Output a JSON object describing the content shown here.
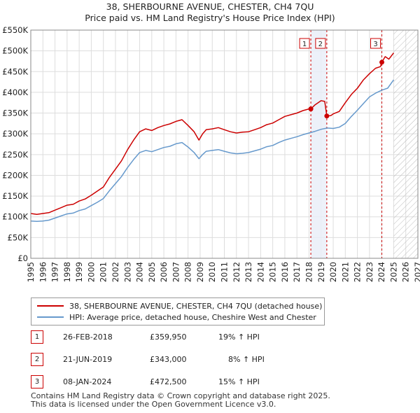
{
  "header": {
    "title": "38, SHERBOURNE AVENUE, CHESTER, CH4 7QU",
    "subtitle": "Price paid vs. HM Land Registry's House Price Index (HPI)"
  },
  "colors": {
    "price_line": "#cc0000",
    "hpi_line": "#6699cc",
    "grid": "#dddddd",
    "shade": "#e8eef8",
    "marker_line": "#cc0000"
  },
  "chart_data": {
    "type": "line",
    "title": "38, SHERBOURNE AVENUE, CHESTER, CH4 7QU",
    "subtitle": "Price paid vs. HM Land Registry's House Price Index (HPI)",
    "xlim": [
      1995,
      2027
    ],
    "ylim": [
      0,
      550000
    ],
    "x_ticks": [
      "1995",
      "1996",
      "1997",
      "1998",
      "1999",
      "2000",
      "2001",
      "2002",
      "2003",
      "2004",
      "2005",
      "2006",
      "2007",
      "2008",
      "2009",
      "2010",
      "2011",
      "2012",
      "2013",
      "2014",
      "2015",
      "2016",
      "2017",
      "2018",
      "2019",
      "2020",
      "2021",
      "2022",
      "2023",
      "2024",
      "2025",
      "2026",
      "2027"
    ],
    "y_ticks": [
      {
        "value": 0,
        "label": "£0"
      },
      {
        "value": 50000,
        "label": "£50K"
      },
      {
        "value": 100000,
        "label": "£100K"
      },
      {
        "value": 150000,
        "label": "£150K"
      },
      {
        "value": 200000,
        "label": "£200K"
      },
      {
        "value": 250000,
        "label": "£250K"
      },
      {
        "value": 300000,
        "label": "£300K"
      },
      {
        "value": 350000,
        "label": "£350K"
      },
      {
        "value": 400000,
        "label": "£400K"
      },
      {
        "value": 450000,
        "label": "£450K"
      },
      {
        "value": 500000,
        "label": "£500K"
      },
      {
        "value": 550000,
        "label": "£550K"
      }
    ],
    "shaded_periods": [
      [
        2018.15,
        2019.47
      ]
    ],
    "future_hatch_from": 2025.0,
    "series": [
      {
        "name": "38, SHERBOURNE AVENUE, CHESTER, CH4 7QU (detached house)",
        "x": [
          1995.0,
          1995.5,
          1996.0,
          1996.5,
          1997.0,
          1997.5,
          1998.0,
          1998.5,
          1999.0,
          1999.5,
          2000.0,
          2000.5,
          2001.0,
          2001.5,
          2002.0,
          2002.5,
          2003.0,
          2003.5,
          2004.0,
          2004.5,
          2005.0,
          2005.5,
          2006.0,
          2006.5,
          2007.0,
          2007.5,
          2008.0,
          2008.5,
          2008.9,
          2009.2,
          2009.5,
          2010.0,
          2010.5,
          2011.0,
          2011.5,
          2012.0,
          2012.5,
          2013.0,
          2013.5,
          2014.0,
          2014.5,
          2015.0,
          2015.5,
          2016.0,
          2016.5,
          2017.0,
          2017.5,
          2018.0,
          2018.15,
          2018.5,
          2019.0,
          2019.3,
          2019.47,
          2019.8,
          2020.0,
          2020.5,
          2021.0,
          2021.5,
          2022.0,
          2022.5,
          2023.0,
          2023.5,
          2023.9,
          2024.02,
          2024.3,
          2024.6,
          2025.0
        ],
        "y": [
          108000,
          106000,
          108000,
          110000,
          116000,
          122000,
          128000,
          130000,
          138000,
          143000,
          152000,
          162000,
          172000,
          195000,
          215000,
          235000,
          262000,
          285000,
          305000,
          312000,
          308000,
          315000,
          320000,
          324000,
          330000,
          334000,
          320000,
          305000,
          285000,
          300000,
          310000,
          312000,
          315000,
          310000,
          305000,
          302000,
          304000,
          305000,
          310000,
          315000,
          322000,
          326000,
          334000,
          342000,
          346000,
          350000,
          356000,
          360000,
          359950,
          370000,
          380000,
          378000,
          343000,
          344000,
          348000,
          354000,
          375000,
          395000,
          410000,
          430000,
          445000,
          458000,
          462000,
          472500,
          486000,
          480000,
          495000
        ]
      },
      {
        "name": "HPI: Average price, detached house, Cheshire West and Chester",
        "x": [
          1995.0,
          1995.5,
          1996.0,
          1996.5,
          1997.0,
          1997.5,
          1998.0,
          1998.5,
          1999.0,
          1999.5,
          2000.0,
          2000.5,
          2001.0,
          2001.5,
          2002.0,
          2002.5,
          2003.0,
          2003.5,
          2004.0,
          2004.5,
          2005.0,
          2005.5,
          2006.0,
          2006.5,
          2007.0,
          2007.5,
          2008.0,
          2008.5,
          2008.9,
          2009.2,
          2009.5,
          2010.0,
          2010.5,
          2011.0,
          2011.5,
          2012.0,
          2012.5,
          2013.0,
          2013.5,
          2014.0,
          2014.5,
          2015.0,
          2015.5,
          2016.0,
          2016.5,
          2017.0,
          2017.5,
          2018.0,
          2018.5,
          2019.0,
          2019.5,
          2020.0,
          2020.5,
          2021.0,
          2021.5,
          2022.0,
          2022.5,
          2023.0,
          2023.5,
          2024.0,
          2024.5,
          2025.0
        ],
        "y": [
          90000,
          89000,
          90000,
          92000,
          97000,
          102000,
          107000,
          109000,
          115000,
          119000,
          127000,
          135000,
          144000,
          163000,
          180000,
          197000,
          219000,
          238000,
          255000,
          260000,
          257000,
          262000,
          267000,
          270000,
          276000,
          279000,
          268000,
          255000,
          240000,
          250000,
          258000,
          260000,
          262000,
          258000,
          254000,
          252000,
          253000,
          255000,
          259000,
          263000,
          269000,
          272000,
          279000,
          285000,
          289000,
          293000,
          298000,
          302000,
          306000,
          311000,
          314000,
          313000,
          316000,
          325000,
          342000,
          357000,
          373000,
          389000,
          398000,
          405000,
          410000,
          430000
        ]
      }
    ],
    "transactions": [
      {
        "label": "1",
        "x": 2018.15,
        "price": 359950
      },
      {
        "label": "2",
        "x": 2019.47,
        "price": 343000
      },
      {
        "label": "3",
        "x": 2024.02,
        "price": 472500
      }
    ]
  },
  "legend": {
    "items": [
      {
        "label": "38, SHERBOURNE AVENUE, CHESTER, CH4 7QU (detached house)"
      },
      {
        "label": "HPI: Average price, detached house, Cheshire West and Chester"
      }
    ]
  },
  "table": {
    "rows": [
      {
        "num": "1",
        "date": "26-FEB-2018",
        "price": "£359,950",
        "hpi": "19% ↑ HPI"
      },
      {
        "num": "2",
        "date": "21-JUN-2019",
        "price": "£343,000",
        "hpi": "8% ↑ HPI"
      },
      {
        "num": "3",
        "date": "08-JAN-2024",
        "price": "£472,500",
        "hpi": "15% ↑ HPI"
      }
    ]
  },
  "footer": {
    "line1": "Contains HM Land Registry data © Crown copyright and database right 2025.",
    "line2": "This data is licensed under the Open Government Licence v3.0."
  }
}
